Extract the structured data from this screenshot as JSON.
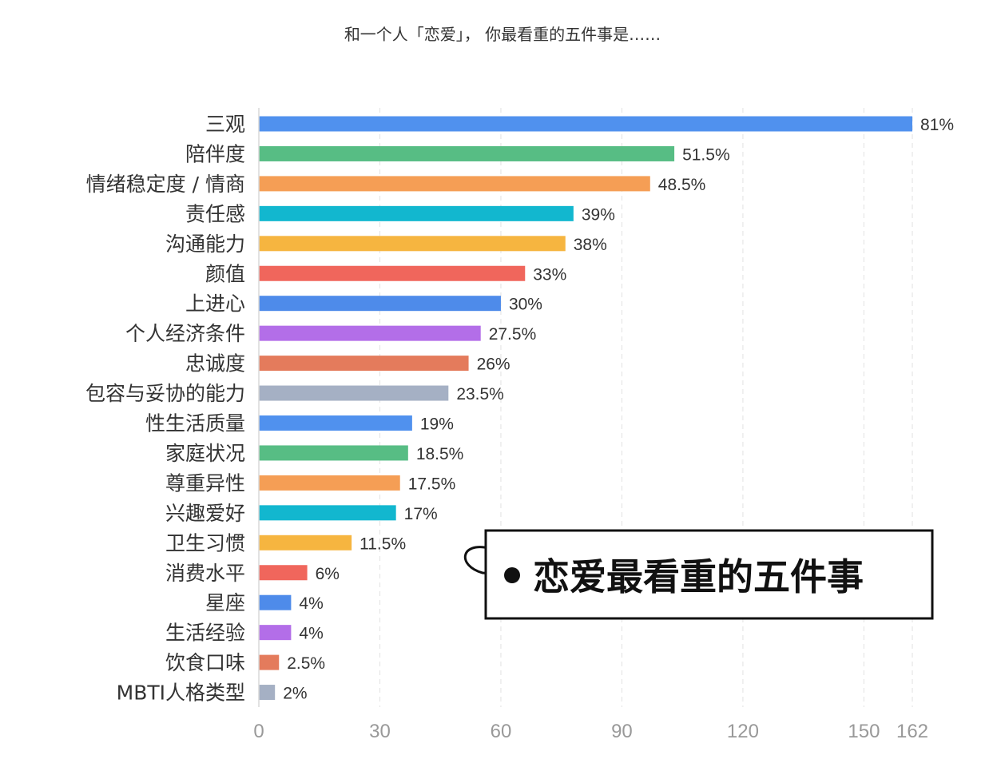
{
  "chart_data": {
    "type": "bar",
    "orientation": "horizontal",
    "title": "和一个人「恋爱」， 你最看重的五件事是……",
    "categories": [
      "三观",
      "陪伴度",
      "情绪稳定度 / 情商",
      "责任感",
      "沟通能力",
      "颜值",
      "上进心",
      "个人经济条件",
      "忠诚度",
      "包容与妥协的能力",
      "性生活质量",
      "家庭状况",
      "尊重异性",
      "兴趣爱好",
      "卫生习惯",
      "消费水平",
      "星座",
      "生活经验",
      "饮食口味",
      "MBTI人格类型"
    ],
    "values": [
      162,
      103,
      97,
      78,
      76,
      66,
      60,
      55,
      52,
      47,
      38,
      37,
      35,
      34,
      23,
      12,
      8,
      8,
      5,
      4
    ],
    "labels": [
      "81%",
      "51.5%",
      "48.5%",
      "39%",
      "38%",
      "33%",
      "30%",
      "27.5%",
      "26%",
      "23.5%",
      "19%",
      "18.5%",
      "17.5%",
      "17%",
      "11.5%",
      "6%",
      "4%",
      "4%",
      "2.5%",
      "2%"
    ],
    "colors": [
      "#5091ee",
      "#57bd84",
      "#f59e55",
      "#12b7cf",
      "#f6b540",
      "#f0665c",
      "#4e8bea",
      "#b36ee8",
      "#e47b5c",
      "#a5b0c4",
      "#5091ee",
      "#57bd84",
      "#f59e55",
      "#12b7cf",
      "#f6b540",
      "#f0665c",
      "#4e8bea",
      "#b36ee8",
      "#e47b5c",
      "#a5b0c4"
    ],
    "xticks": [
      0,
      30,
      60,
      90,
      120,
      150,
      162
    ],
    "xlim": [
      0,
      162
    ],
    "grid": true,
    "legend": "none"
  },
  "callout": {
    "text": "恋爱最看重的五件事"
  }
}
